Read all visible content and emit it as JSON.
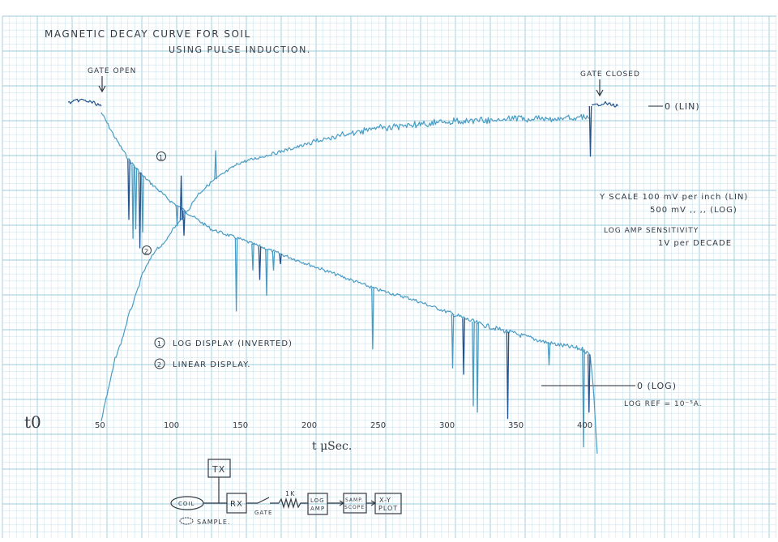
{
  "chart_data": {
    "type": "line",
    "title": "MAGNETIC DECAY CURVE FOR SOIL",
    "subtitle": "USING PULSE INDUCTION.",
    "xlabel": "t μSec.",
    "x_origin_label": "t0",
    "x_ticks": [
      50,
      100,
      150,
      200,
      250,
      300,
      350,
      400
    ],
    "xlim": [
      23,
      427
    ],
    "grid": true,
    "colors": {
      "grid_minor": "#cde6ee",
      "grid_major": "#9ccbdb",
      "trace_ink": "#4a9cc4",
      "trace_dark": "#23528f",
      "pen": "#333a44"
    },
    "series": [
      {
        "name": "LOG DISPLAY (INVERTED)",
        "marker": "1",
        "points": [
          [
            50,
            0.02
          ],
          [
            55,
            0.06
          ],
          [
            60,
            0.1
          ],
          [
            70,
            0.17
          ],
          [
            80,
            0.22
          ],
          [
            90,
            0.26
          ],
          [
            100,
            0.3
          ],
          [
            110,
            0.33
          ],
          [
            120,
            0.36
          ],
          [
            130,
            0.39
          ],
          [
            150,
            0.42
          ],
          [
            175,
            0.46
          ],
          [
            200,
            0.5
          ],
          [
            225,
            0.54
          ],
          [
            250,
            0.58
          ],
          [
            275,
            0.61
          ],
          [
            300,
            0.65
          ],
          [
            325,
            0.69
          ],
          [
            350,
            0.72
          ],
          [
            375,
            0.75
          ],
          [
            400,
            0.77
          ],
          [
            405,
            0.79
          ],
          [
            407,
            0.88
          ],
          [
            410,
            1.1
          ]
        ],
        "spikes": [
          [
            70,
            0.36
          ],
          [
            73,
            0.42
          ],
          [
            75,
            0.39
          ],
          [
            78,
            0.45
          ],
          [
            80,
            0.4
          ],
          [
            105,
            0.38
          ],
          [
            110,
            0.41
          ],
          [
            148,
            0.65
          ],
          [
            160,
            0.52
          ],
          [
            165,
            0.55
          ],
          [
            170,
            0.6
          ],
          [
            175,
            0.52
          ],
          [
            180,
            0.5
          ],
          [
            247,
            0.77
          ],
          [
            305,
            0.83
          ],
          [
            313,
            0.85
          ],
          [
            320,
            0.95
          ],
          [
            323,
            0.97
          ],
          [
            345,
            0.99
          ],
          [
            375,
            0.82
          ],
          [
            400,
            1.08
          ],
          [
            404,
            0.97
          ]
        ]
      },
      {
        "name": "LINEAR DISPLAY.",
        "marker": "2",
        "points": [
          [
            50,
            1.0
          ],
          [
            52,
            0.95
          ],
          [
            55,
            0.9
          ],
          [
            60,
            0.8
          ],
          [
            65,
            0.74
          ],
          [
            70,
            0.66
          ],
          [
            75,
            0.6
          ],
          [
            80,
            0.53
          ],
          [
            85,
            0.49
          ],
          [
            90,
            0.45
          ],
          [
            95,
            0.44
          ],
          [
            100,
            0.4
          ],
          [
            110,
            0.35
          ],
          [
            120,
            0.28
          ],
          [
            130,
            0.24
          ],
          [
            140,
            0.21
          ],
          [
            150,
            0.18
          ],
          [
            175,
            0.15
          ],
          [
            200,
            0.12
          ],
          [
            225,
            0.09
          ],
          [
            250,
            0.07
          ],
          [
            275,
            0.06
          ],
          [
            300,
            0.05
          ],
          [
            325,
            0.045
          ],
          [
            350,
            0.04
          ],
          [
            375,
            0.04
          ],
          [
            400,
            0.035
          ],
          [
            405,
            0.04
          ]
        ],
        "spikes": [
          [
            108,
            0.22
          ],
          [
            133,
            0.14
          ]
        ]
      },
      {
        "name": "0 (LIN)",
        "points": [
          [
            26,
            -0.01
          ],
          [
            35,
            -0.02
          ],
          [
            45,
            -0.01
          ],
          [
            50,
            0.0
          ]
        ],
        "spikes": []
      },
      {
        "name": "0 (LIN)",
        "points": [
          [
            406,
            0.0
          ],
          [
            415,
            -0.01
          ],
          [
            425,
            0.0
          ]
        ],
        "spikes": [
          [
            405,
            0.16
          ]
        ]
      }
    ],
    "annotations": [
      {
        "text": "GATE OPEN",
        "x": 50
      },
      {
        "text": "GATE CLOSED",
        "x": 406
      },
      {
        "text": "0 (LIN)"
      },
      {
        "text": "0 (LOG)"
      },
      {
        "text": "Y SCALE   100 mV per inch (LIN)"
      },
      {
        "text": "500 mV    ,,     ,,      (LOG)"
      },
      {
        "text": "LOG AMP SENSITIVITY"
      },
      {
        "text": "1V per DECADE"
      },
      {
        "text": "LOG REF = 10⁻⁵A."
      },
      {
        "text": "1"
      }
    ],
    "legend": [
      {
        "marker": "1",
        "text": "LOG DISPLAY (INVERTED)"
      },
      {
        "marker": "2",
        "text": "LINEAR DISPLAY."
      }
    ]
  },
  "diagram": {
    "tx": "TX",
    "coil": "COIL",
    "rx": "RX",
    "gate": "GATE",
    "resistor": "1K",
    "log_amp_1": "LOG",
    "log_amp_2": "AMP",
    "samp_1": "SAMP.",
    "samp_2": "SCOPE",
    "xy_1": "X-Y",
    "xy_2": "PLOT",
    "sample": "SAMPLE."
  }
}
